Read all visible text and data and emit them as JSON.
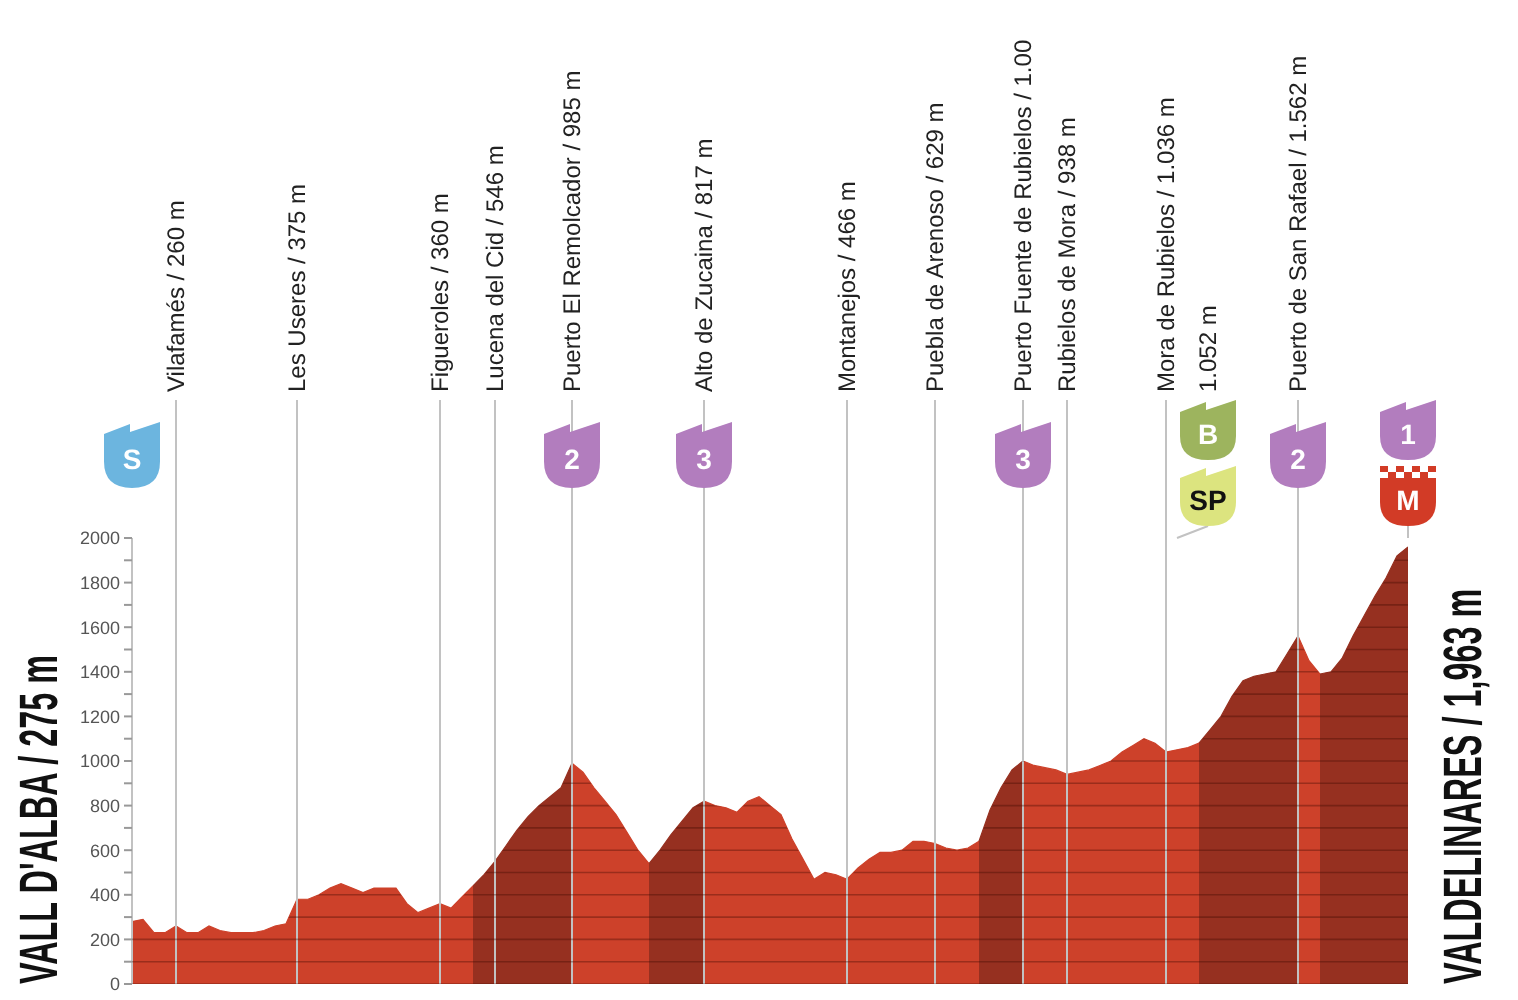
{
  "chart_data": {
    "type": "area",
    "categories": [
      null,
      null,
      null,
      null,
      "Vilafamés / 260 m",
      null,
      null,
      null,
      null,
      null,
      null,
      null,
      null,
      null,
      null,
      "Les Useres / 375 m",
      null,
      null,
      null,
      null,
      null,
      null,
      null,
      null,
      null,
      null,
      null,
      null,
      "Figueroles / 360 m",
      null,
      null,
      null,
      null,
      "Lucena del Cid / 546 m",
      null,
      null,
      null,
      null,
      null,
      null,
      "Puerto El Remolcador / 985 m",
      null,
      null,
      null,
      null,
      null,
      null,
      null,
      null,
      null,
      null,
      null,
      "Alto de Zucaina / 817 m",
      null,
      null,
      null,
      null,
      null,
      null,
      null,
      null,
      null,
      null,
      null,
      null,
      "Montanejos / 466 m",
      null,
      null,
      null,
      null,
      null,
      null,
      null,
      "Puebla de Arenoso / 629 m",
      null,
      null,
      null,
      null,
      null,
      null,
      null,
      "Puerto Fuente de Rubielos / 1.00",
      null,
      null,
      null,
      "Rubielos de Mora / 938 m",
      null,
      null,
      null,
      null,
      null,
      null,
      null,
      null,
      "Mora de Rubielos / 1.036 m",
      null,
      null,
      null,
      null,
      null,
      null,
      null,
      null,
      null,
      null,
      null,
      "Puerto de San Rafael / 1.562 m",
      null,
      null,
      null,
      null,
      null,
      null,
      null,
      null,
      null,
      null
    ],
    "series": [
      {
        "color": "#cd412a",
        "values": [
          280,
          290,
          230,
          230,
          260,
          230,
          230,
          260,
          240,
          230,
          230,
          230,
          240,
          260,
          270,
          380,
          380,
          400,
          430,
          450,
          430,
          410,
          430,
          430,
          430,
          360,
          320,
          340,
          360,
          340,
          390,
          440,
          null,
          null,
          null,
          null,
          null,
          null,
          null,
          null,
          990,
          950,
          880,
          820,
          760,
          680,
          600,
          540,
          null,
          null,
          null,
          null,
          820,
          800,
          790,
          770,
          820,
          840,
          800,
          760,
          650,
          560,
          470,
          500,
          490,
          470,
          520,
          560,
          590,
          590,
          600,
          640,
          640,
          630,
          610,
          600,
          610,
          640,
          null,
          null,
          null,
          1000,
          980,
          970,
          960,
          940,
          950,
          960,
          980,
          1000,
          1040,
          1070,
          1100,
          1080,
          1040,
          1050,
          1060,
          1080,
          null,
          null,
          null,
          null,
          null,
          null,
          null,
          null,
          1560,
          1450,
          1390,
          null,
          null,
          null,
          null,
          null,
          null,
          null,
          null
        ]
      },
      {
        "color": "#963020",
        "values": [
          null,
          null,
          null,
          null,
          null,
          null,
          null,
          null,
          null,
          null,
          null,
          null,
          null,
          null,
          null,
          null,
          null,
          null,
          null,
          null,
          null,
          null,
          null,
          null,
          null,
          null,
          null,
          null,
          null,
          null,
          null,
          440,
          490,
          550,
          620,
          690,
          750,
          800,
          840,
          880,
          990,
          null,
          null,
          null,
          null,
          null,
          null,
          540,
          600,
          670,
          730,
          790,
          820,
          null,
          null,
          null,
          null,
          null,
          null,
          null,
          null,
          null,
          null,
          null,
          null,
          null,
          null,
          null,
          null,
          null,
          null,
          null,
          null,
          null,
          null,
          null,
          null,
          640,
          780,
          880,
          960,
          1000,
          null,
          null,
          null,
          null,
          null,
          null,
          null,
          null,
          null,
          null,
          null,
          null,
          null,
          null,
          null,
          1080,
          1140,
          1200,
          1290,
          1360,
          1380,
          1390,
          1400,
          1480,
          1560,
          null,
          1390,
          1400,
          1460,
          1560,
          1650,
          1740,
          1820,
          1920,
          1960
        ]
      }
    ],
    "ylim": [
      0,
      2000
    ],
    "yticks": [
      0,
      {
        "value": 100,
        "label": null
      },
      200,
      {
        "value": 300,
        "label": null
      },
      400,
      {
        "value": 500,
        "label": null
      },
      600,
      {
        "value": 700,
        "label": null
      },
      800,
      {
        "value": 900,
        "label": null
      },
      1000,
      {
        "value": 1100,
        "label": null
      },
      1200,
      {
        "value": 1300,
        "label": null
      },
      1400,
      {
        "value": 1500,
        "label": null
      },
      1600,
      {
        "value": 1700,
        "label": null
      },
      1800,
      {
        "value": 1900,
        "label": null
      },
      2000
    ],
    "grid": true,
    "annotations": [
      "VALL D'ALBA / 275 m",
      "S",
      "2",
      "3",
      "3",
      "1.052 m",
      "B",
      "SP",
      "2",
      "1",
      "M",
      "VALDELINARES / 1,963 m"
    ]
  }
}
